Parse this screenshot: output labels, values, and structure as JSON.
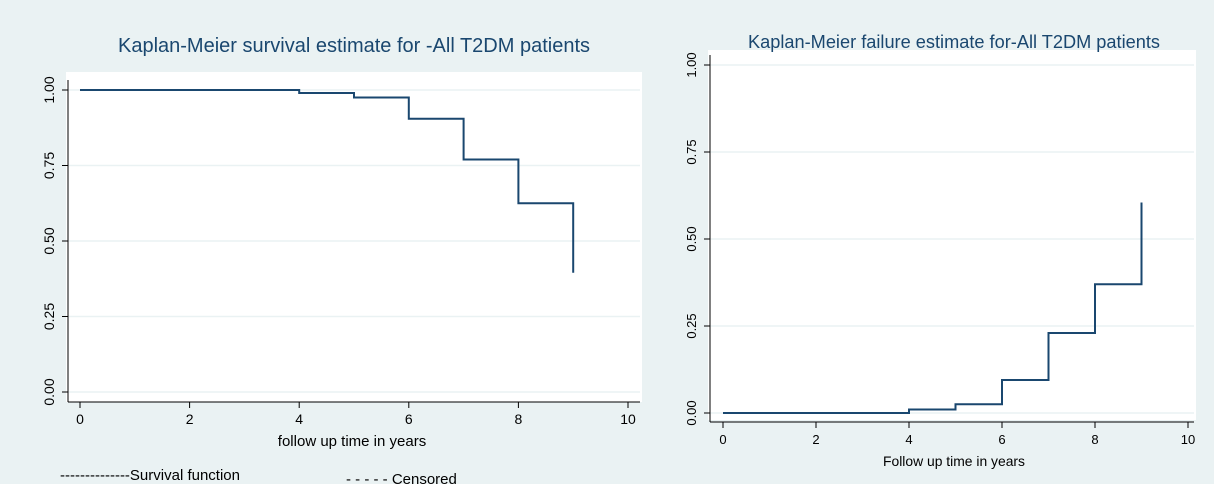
{
  "chart_data": [
    {
      "type": "line",
      "subtype": "step",
      "title": "Kaplan-Meier survival estimate for -All T2DM patients",
      "xlabel": "follow up time in years",
      "ylabel": "",
      "xlim": [
        0,
        10
      ],
      "ylim": [
        0,
        1
      ],
      "xticks": [
        "0",
        "2",
        "4",
        "6",
        "8",
        "10"
      ],
      "yticks": [
        "0.00",
        "0.25",
        "0.50",
        "0.75",
        "1.00"
      ],
      "grid": true,
      "legend_position": "bottom",
      "legend": [
        "--------------Survival function",
        "- - - - - Censored"
      ],
      "series": [
        {
          "x": [
            0,
            4,
            5,
            6,
            7,
            8,
            9,
            9
          ],
          "y": [
            1.0,
            0.99,
            0.975,
            0.905,
            0.77,
            0.625,
            0.625,
            0.395
          ]
        }
      ],
      "colors": {
        "line": "#1a476f",
        "background": "#eaf2f3"
      }
    },
    {
      "type": "line",
      "subtype": "step",
      "title": "Kaplan-Meier failure estimate for-All T2DM patients",
      "xlabel": "Follow up  time in years",
      "ylabel": "",
      "xlim": [
        0,
        10
      ],
      "ylim": [
        0,
        1
      ],
      "xticks": [
        "0",
        "2",
        "4",
        "6",
        "8",
        "10"
      ],
      "yticks": [
        "0.00",
        "0.25",
        "0.50",
        "0.75",
        "1.00"
      ],
      "grid": true,
      "series": [
        {
          "x": [
            0,
            4,
            5,
            6,
            7,
            8,
            9,
            9
          ],
          "y": [
            0.0,
            0.01,
            0.025,
            0.095,
            0.23,
            0.37,
            0.37,
            0.605
          ]
        }
      ],
      "colors": {
        "line": "#1a476f",
        "background": "#eaf2f3"
      }
    }
  ]
}
